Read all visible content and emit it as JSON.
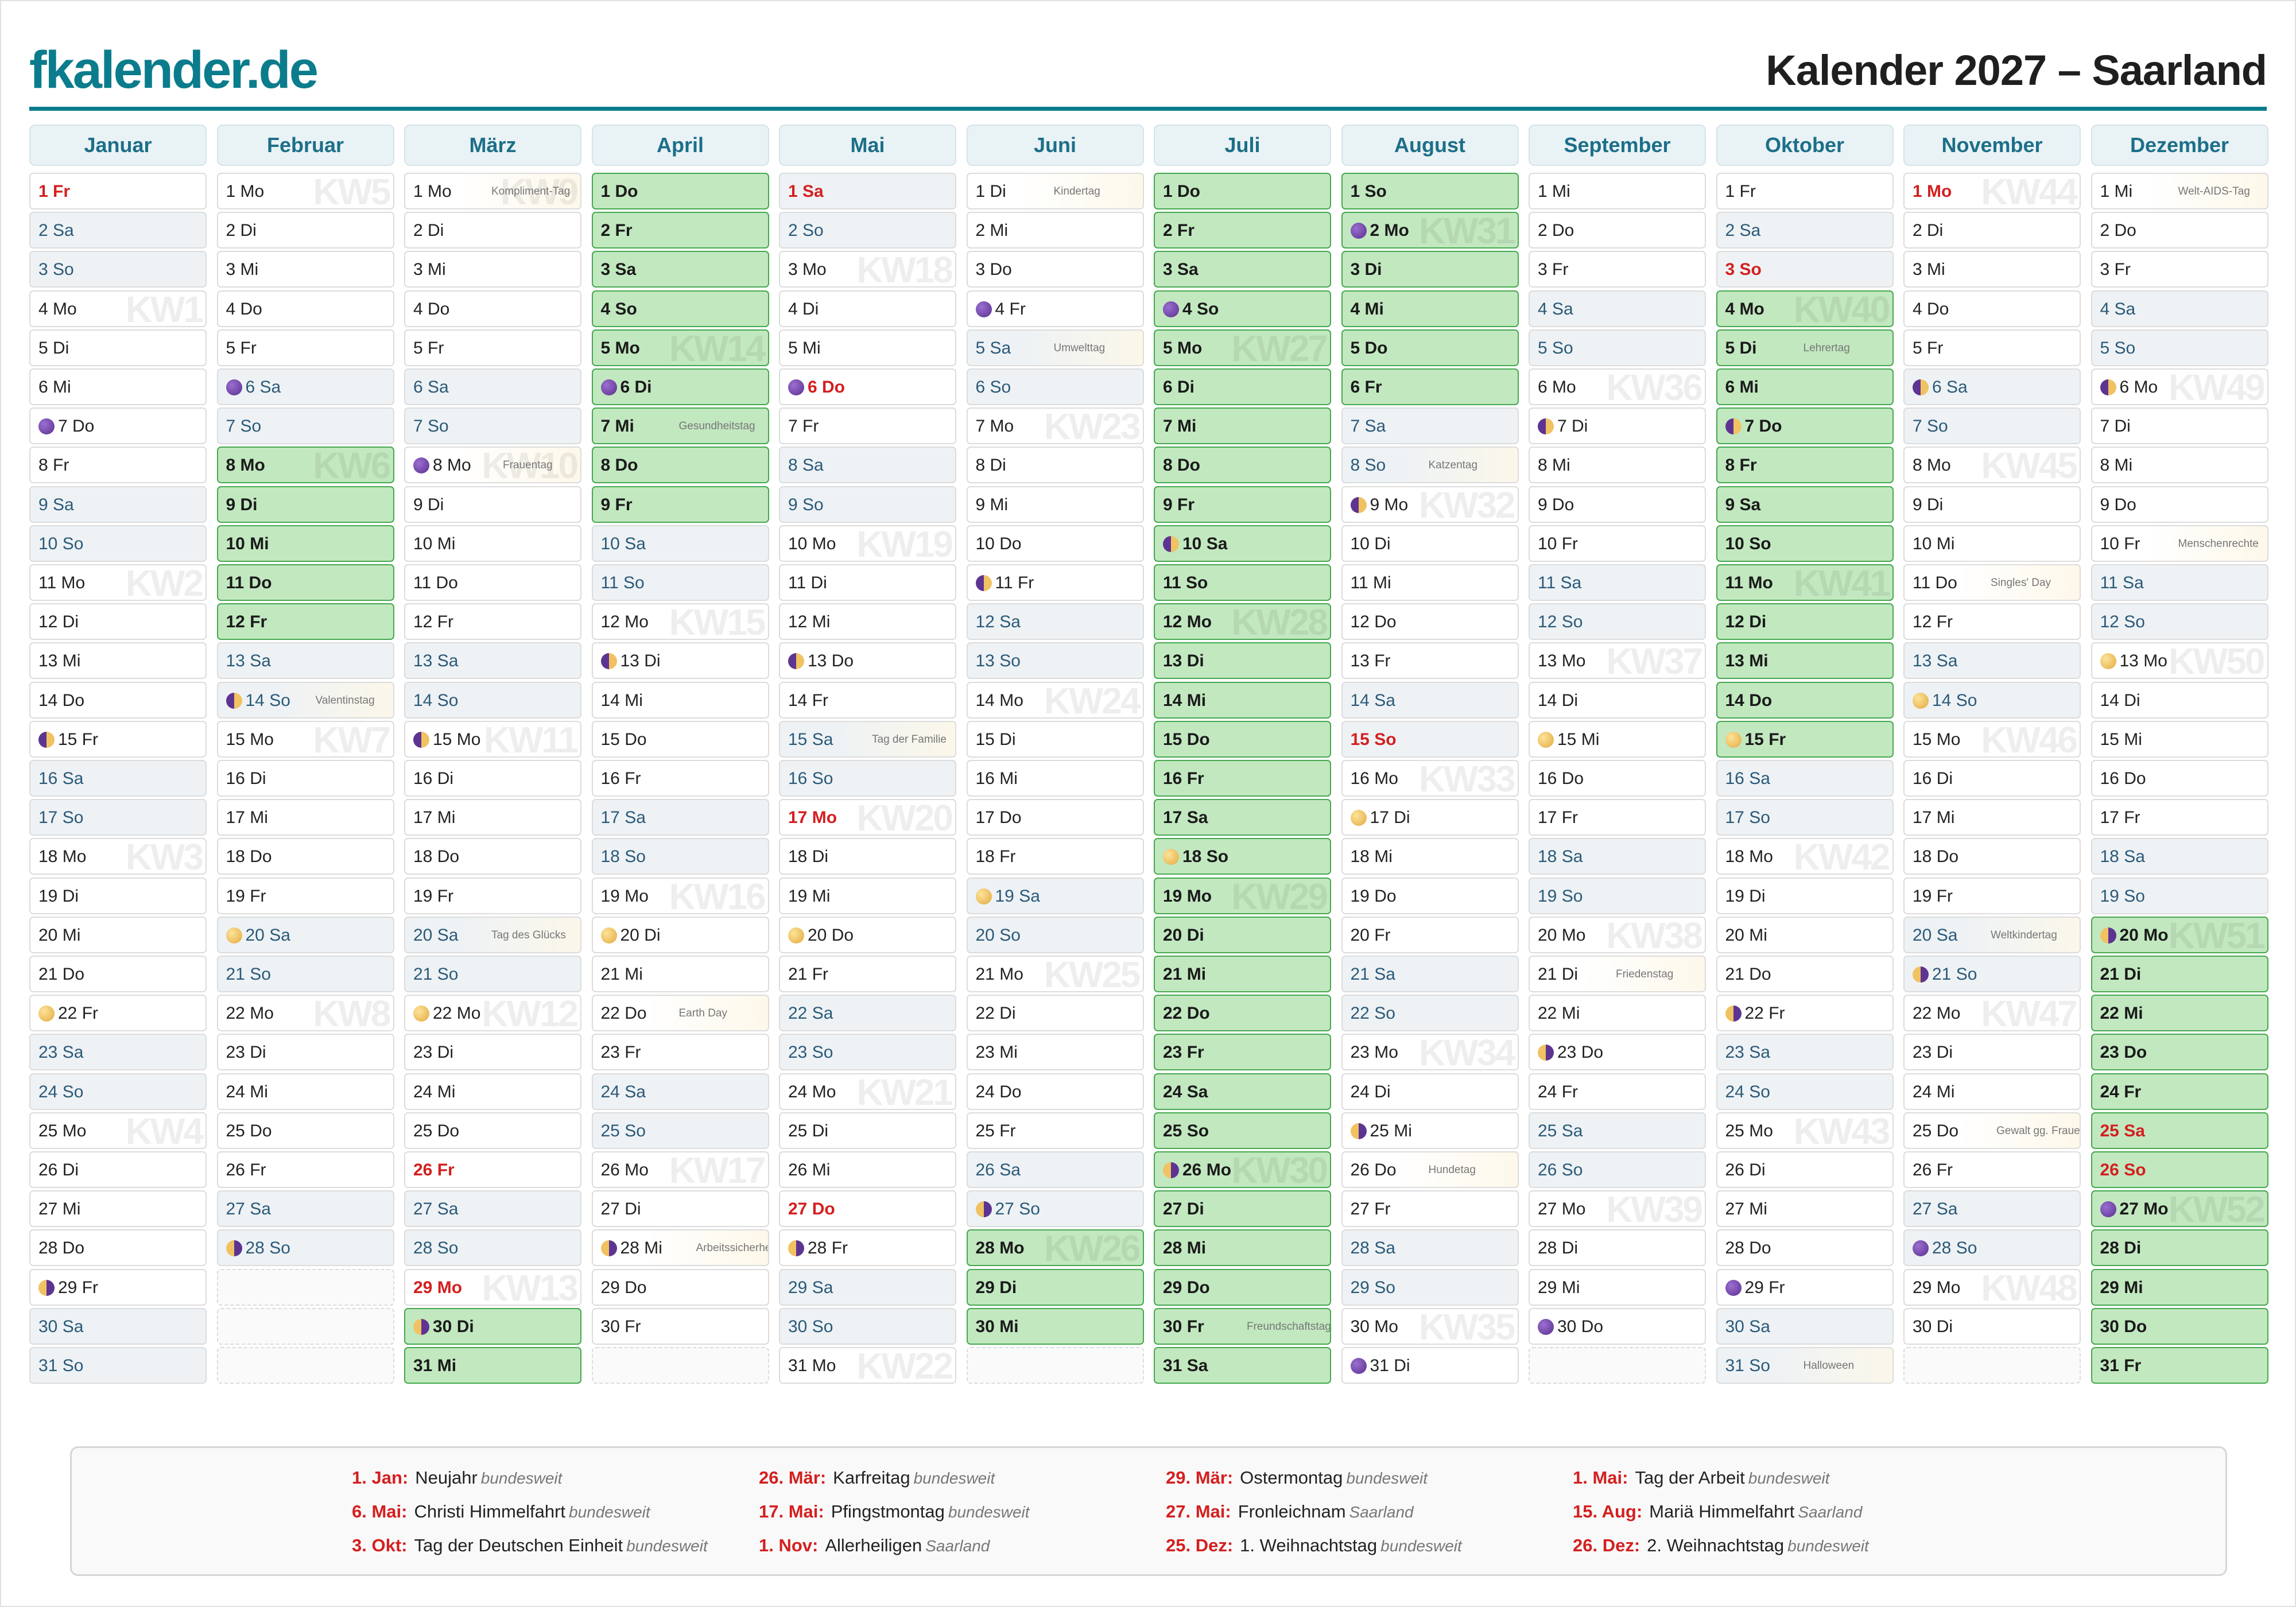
{
  "header": {
    "logo": "fkalender.de",
    "title": "Kalender 2027 – Saarland"
  },
  "weekdays": [
    "Mo",
    "Di",
    "Mi",
    "Do",
    "Fr",
    "Sa",
    "So"
  ],
  "colors": {
    "brand": "#0b7c8c",
    "holiday": "#d41f1f",
    "vacation": "#c2e8c0",
    "weekend": "#eef2f5"
  },
  "months": [
    {
      "name": "Januar",
      "first": 4,
      "len": 31,
      "holidays": [
        1
      ],
      "vacation": [],
      "moon": {
        "7": "new",
        "15": "first",
        "22": "full",
        "29": "last"
      },
      "notes": {},
      "kw": {
        "4": "KW1",
        "11": "KW2",
        "18": "KW3",
        "25": "KW4"
      }
    },
    {
      "name": "Februar",
      "first": 0,
      "len": 28,
      "holidays": [],
      "vacation": [
        8,
        9,
        10,
        11,
        12
      ],
      "moon": {
        "6": "new",
        "14": "first",
        "20": "full",
        "28": "last"
      },
      "notes": {
        "14": "Valentinstag"
      },
      "kw": {
        "1": "KW5",
        "8": "KW6",
        "15": "KW7",
        "22": "KW8"
      }
    },
    {
      "name": "März",
      "first": 0,
      "len": 31,
      "holidays": [
        26,
        29
      ],
      "vacation": [
        30,
        31
      ],
      "moon": {
        "8": "new",
        "15": "first",
        "22": "full",
        "30": "last"
      },
      "notes": {
        "1": "Kompliment-Tag",
        "8": "Frauentag",
        "20": "Tag des Glücks"
      },
      "kw": {
        "1": "KW9",
        "8": "KW10",
        "15": "KW11",
        "22": "KW12",
        "29": "KW13"
      }
    },
    {
      "name": "April",
      "first": 3,
      "len": 30,
      "holidays": [],
      "vacation": [
        1,
        2,
        3,
        4,
        5,
        6,
        7,
        8,
        9
      ],
      "moon": {
        "6": "new",
        "13": "first",
        "20": "full",
        "28": "last"
      },
      "notes": {
        "7": "Gesundheitstag",
        "22": "Earth Day",
        "28": "Arbeitssicherheit"
      },
      "kw": {
        "5": "KW14",
        "12": "KW15",
        "19": "KW16",
        "26": "KW17"
      }
    },
    {
      "name": "Mai",
      "first": 5,
      "len": 31,
      "holidays": [
        1,
        6,
        17,
        27
      ],
      "vacation": [],
      "moon": {
        "6": "new",
        "13": "first",
        "20": "full",
        "28": "last"
      },
      "notes": {
        "15": "Tag der Familie"
      },
      "kw": {
        "3": "KW18",
        "10": "KW19",
        "17": "KW20",
        "24": "KW21",
        "31": "KW22"
      }
    },
    {
      "name": "Juni",
      "first": 1,
      "len": 30,
      "holidays": [],
      "vacation": [
        28,
        29,
        30
      ],
      "moon": {
        "4": "new",
        "11": "first",
        "19": "full",
        "27": "last"
      },
      "notes": {
        "1": "Kindertag",
        "5": "Umwelttag"
      },
      "kw": {
        "7": "KW23",
        "14": "KW24",
        "21": "KW25",
        "28": "KW26"
      }
    },
    {
      "name": "Juli",
      "first": 3,
      "len": 31,
      "holidays": [],
      "vacation": [
        1,
        2,
        3,
        4,
        5,
        6,
        7,
        8,
        9,
        10,
        11,
        12,
        13,
        14,
        15,
        16,
        17,
        18,
        19,
        20,
        21,
        22,
        23,
        24,
        25,
        26,
        27,
        28,
        29,
        30,
        31
      ],
      "moon": {
        "4": "new",
        "10": "first",
        "18": "full",
        "26": "last"
      },
      "notes": {
        "30": "Freundschaftstag"
      },
      "kw": {
        "5": "KW27",
        "12": "KW28",
        "19": "KW29",
        "26": "KW30"
      }
    },
    {
      "name": "August",
      "first": 6,
      "len": 31,
      "holidays": [
        15
      ],
      "vacation": [
        1,
        2,
        3,
        4,
        5,
        6
      ],
      "moon": {
        "2": "new",
        "9": "first",
        "17": "full",
        "25": "last",
        "31": "new"
      },
      "notes": {
        "8": "Katzentag",
        "26": "Hundetag"
      },
      "kw": {
        "2": "KW31",
        "9": "KW32",
        "16": "KW33",
        "23": "KW34",
        "30": "KW35"
      }
    },
    {
      "name": "September",
      "first": 2,
      "len": 30,
      "holidays": [],
      "vacation": [],
      "moon": {
        "7": "first",
        "15": "full",
        "23": "last",
        "30": "new"
      },
      "notes": {
        "21": "Friedenstag"
      },
      "kw": {
        "6": "KW36",
        "13": "KW37",
        "20": "KW38",
        "27": "KW39"
      }
    },
    {
      "name": "Oktober",
      "first": 4,
      "len": 31,
      "holidays": [
        3
      ],
      "vacation": [
        4,
        5,
        6,
        7,
        8,
        9,
        10,
        11,
        12,
        13,
        14,
        15
      ],
      "moon": {
        "7": "first",
        "15": "full",
        "22": "last",
        "29": "new"
      },
      "notes": {
        "5": "Lehrertag",
        "31": "Halloween"
      },
      "kw": {
        "4": "KW40",
        "11": "KW41",
        "18": "KW42",
        "25": "KW43"
      }
    },
    {
      "name": "November",
      "first": 0,
      "len": 30,
      "holidays": [
        1
      ],
      "vacation": [],
      "moon": {
        "6": "first",
        "14": "full",
        "21": "last",
        "28": "new"
      },
      "notes": {
        "11": "Singles' Day",
        "20": "Weltkindertag",
        "25": "Gewalt gg. Frauen"
      },
      "kw": {
        "1": "KW44",
        "8": "KW45",
        "15": "KW46",
        "22": "KW47",
        "29": "KW48"
      }
    },
    {
      "name": "Dezember",
      "first": 2,
      "len": 31,
      "holidays": [
        25,
        26
      ],
      "vacation": [
        20,
        21,
        22,
        23,
        24,
        25,
        26,
        27,
        28,
        29,
        30,
        31
      ],
      "moon": {
        "6": "first",
        "13": "full",
        "20": "last",
        "27": "new"
      },
      "notes": {
        "1": "Welt-AIDS-Tag",
        "10": "Menschenrechte"
      },
      "kw": {
        "6": "KW49",
        "13": "KW50",
        "20": "KW51",
        "27": "KW52"
      }
    }
  ],
  "legend": [
    {
      "date": "1. Jan:",
      "name": "Neujahr",
      "scope": "bundesweit"
    },
    {
      "date": "26. Mär:",
      "name": "Karfreitag",
      "scope": "bundesweit"
    },
    {
      "date": "29. Mär:",
      "name": "Ostermontag",
      "scope": "bundesweit"
    },
    {
      "date": "1. Mai:",
      "name": "Tag der Arbeit",
      "scope": "bundesweit"
    },
    {
      "date": "6. Mai:",
      "name": "Christi Himmelfahrt",
      "scope": "bundesweit"
    },
    {
      "date": "17. Mai:",
      "name": "Pfingstmontag",
      "scope": "bundesweit"
    },
    {
      "date": "27. Mai:",
      "name": "Fronleichnam",
      "scope": "Saarland"
    },
    {
      "date": "15. Aug:",
      "name": "Mariä Himmelfahrt",
      "scope": "Saarland"
    },
    {
      "date": "3. Okt:",
      "name": "Tag der Deutschen Einheit",
      "scope": "bundesweit"
    },
    {
      "date": "1. Nov:",
      "name": "Allerheiligen",
      "scope": "Saarland"
    },
    {
      "date": "25. Dez:",
      "name": "1. Weihnachtstag",
      "scope": "bundesweit"
    },
    {
      "date": "26. Dez:",
      "name": "2. Weihnachtstag",
      "scope": "bundesweit"
    }
  ]
}
